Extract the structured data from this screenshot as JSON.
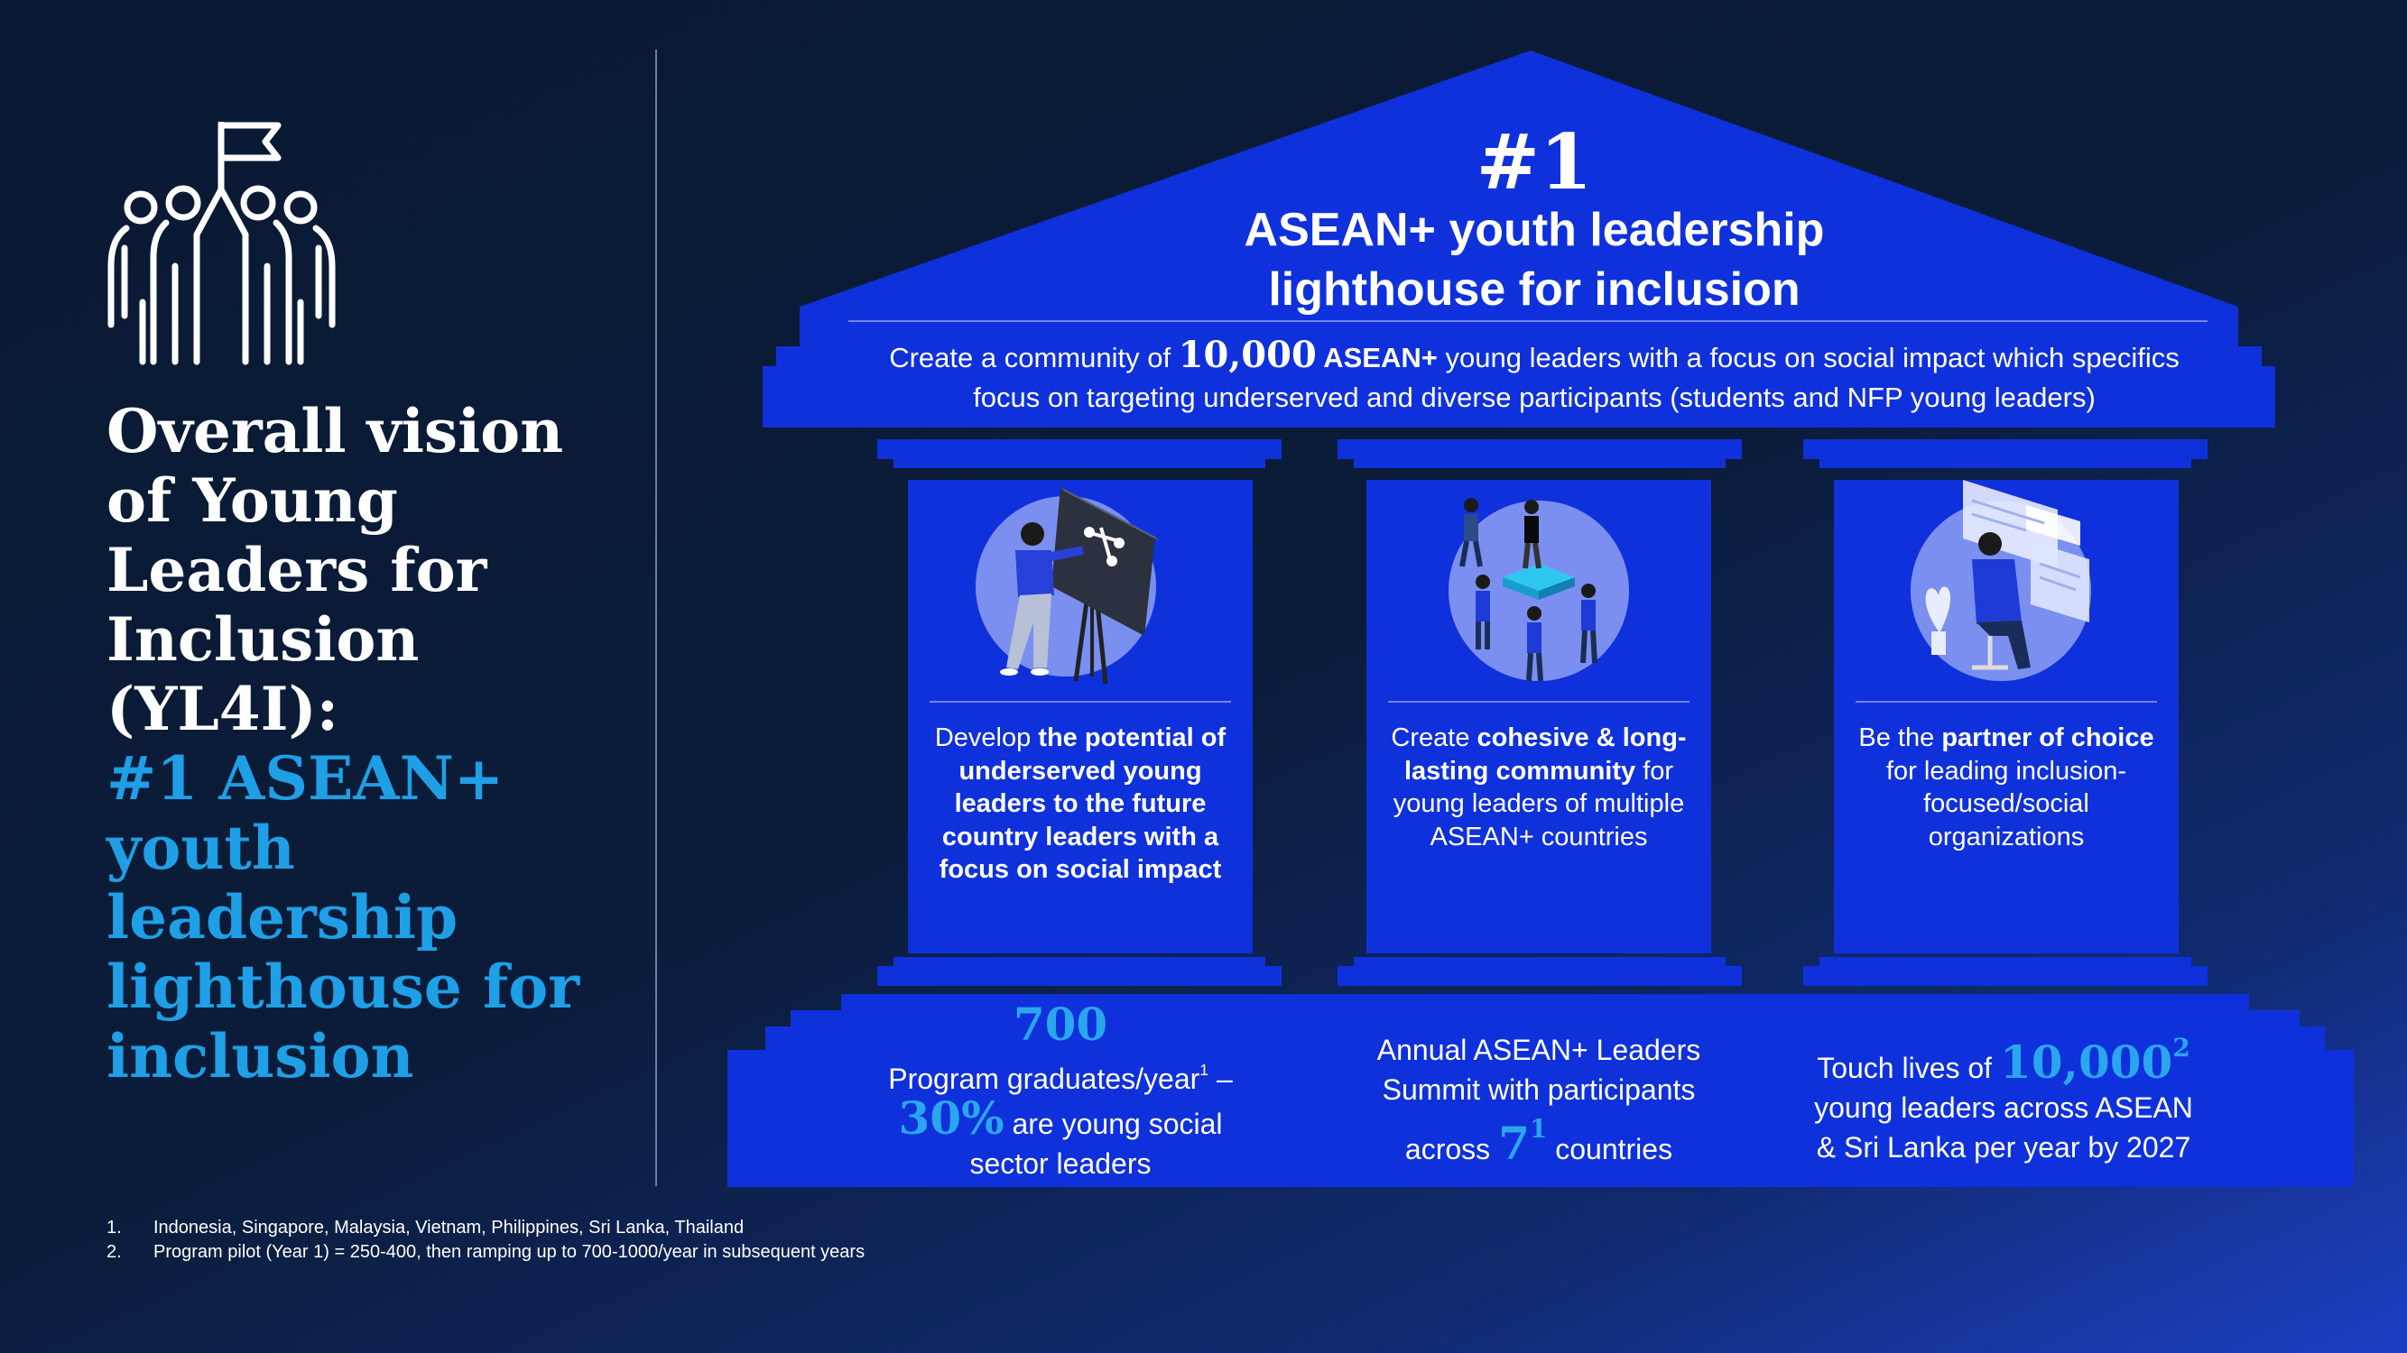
{
  "left": {
    "title_white": [
      "Overall vision",
      "of Young",
      "Leaders for",
      "Inclusion",
      "(YL4I):"
    ],
    "title_blue": [
      "#1 ASEAN+",
      "youth",
      "leadership",
      "lighthouse for",
      "inclusion"
    ]
  },
  "roof": {
    "rank": "#1",
    "title_line1": "ASEAN+ youth leadership",
    "title_line2": "lighthouse for inclusion"
  },
  "vision": {
    "pre": "Create a community of ",
    "number": "10,000",
    "bold": " ASEAN+",
    "post": " young leaders with a focus on social impact which specifics",
    "line2": "focus on targeting underserved and diverse participants (students and NFP young leaders)"
  },
  "pillars": [
    {
      "illustration": "teacher-at-board-icon",
      "plain1": "Develop ",
      "bold1": "the potential of underserved young leaders to the future country leaders with a focus on social impact",
      "plain2": ""
    },
    {
      "illustration": "team-building-icon",
      "plain1": "Create ",
      "bold1": "cohesive & long-lasting community",
      "plain2": " for young leaders of multiple ASEAN+ countries"
    },
    {
      "illustration": "analyst-at-screen-icon",
      "plain1": "Be the ",
      "bold1": "partner of choice",
      "plain2": " for leading inclusion-focused/social organizations"
    }
  ],
  "steps": [
    {
      "number": "700",
      "line1": "Program graduates/year",
      "line1_sup": "1",
      "line1_post": " –",
      "percent": "30%",
      "line2": " are young social",
      "line3": "sector leaders"
    },
    {
      "line1": "Annual ASEAN+ Leaders",
      "line2": "Summit  with participants",
      "line3_pre": "across ",
      "number": "7",
      "number_sup": "1",
      "line3_post": " countries"
    },
    {
      "line1_pre": "Touch lives of ",
      "number": "10,000",
      "number_sup": "2",
      "line2": "young leaders across ASEAN",
      "line3": "& Sri Lanka per year by 2027"
    }
  ],
  "footnotes": [
    {
      "n": "1.",
      "text": "Indonesia, Singapore, Malaysia, Vietnam, Philippines, Sri Lanka, Thailand"
    },
    {
      "n": "2.",
      "text": "Program pilot (Year 1) = 250-400, then ramping up to 700-1000/year in subsequent years"
    }
  ],
  "colors": {
    "background": "#0b1c3a",
    "building_blue": "#0f31dc",
    "pillar_blue": "#1133d8",
    "accent_blue": "#1e9fe6",
    "circle_fill": "#7b8ff0"
  }
}
